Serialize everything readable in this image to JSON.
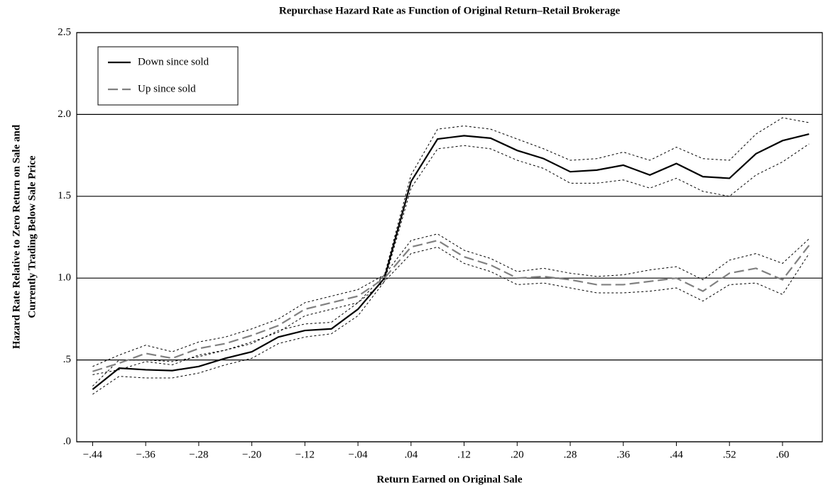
{
  "chart_data": {
    "type": "line",
    "title": "Repurchase Hazard Rate as Function of Original Return–Retail Brokerage",
    "x_label": "Return Earned on Original Sale",
    "y_label": [
      "Hazard Rate Relative to Zero Return on Sale and",
      "Currently Trading Below Sale Price"
    ],
    "x": [
      -0.44,
      -0.4,
      -0.36,
      -0.32,
      -0.28,
      -0.24,
      -0.2,
      -0.16,
      -0.12,
      -0.08,
      -0.04,
      0,
      0.04,
      0.08,
      0.12,
      0.16,
      0.2,
      0.24,
      0.28,
      0.32,
      0.36,
      0.4,
      0.44,
      0.48,
      0.52,
      0.56,
      0.6,
      0.64
    ],
    "series": [
      {
        "name": "Down since sold",
        "color": "#000000",
        "style": "solid",
        "values": [
          0.32,
          0.45,
          0.44,
          0.435,
          0.46,
          0.51,
          0.55,
          0.64,
          0.68,
          0.69,
          0.81,
          1.0,
          1.59,
          1.85,
          1.87,
          1.855,
          1.78,
          1.73,
          1.65,
          1.66,
          1.69,
          1.63,
          1.7,
          1.62,
          1.61,
          1.76,
          1.84,
          1.88
        ],
        "lower": [
          0.29,
          0.4,
          0.39,
          0.39,
          0.42,
          0.47,
          0.51,
          0.6,
          0.64,
          0.66,
          0.77,
          0.98,
          1.55,
          1.79,
          1.81,
          1.79,
          1.72,
          1.67,
          1.58,
          1.58,
          1.6,
          1.55,
          1.61,
          1.53,
          1.5,
          1.63,
          1.71,
          1.82
        ],
        "upper": [
          0.34,
          0.5,
          0.5,
          0.49,
          0.52,
          0.56,
          0.6,
          0.68,
          0.72,
          0.73,
          0.85,
          1.02,
          1.63,
          1.91,
          1.93,
          1.91,
          1.85,
          1.79,
          1.72,
          1.73,
          1.77,
          1.72,
          1.8,
          1.73,
          1.72,
          1.88,
          1.98,
          1.95
        ]
      },
      {
        "name": "Up since sold",
        "color": "#808080",
        "style": "dashed",
        "values": [
          0.43,
          0.48,
          0.54,
          0.51,
          0.57,
          0.6,
          0.65,
          0.71,
          0.81,
          0.85,
          0.89,
          1.0,
          1.19,
          1.23,
          1.13,
          1.08,
          1.0,
          1.01,
          0.99,
          0.96,
          0.96,
          0.98,
          1.0,
          0.92,
          1.03,
          1.06,
          0.99,
          1.2
        ],
        "lower": [
          0.41,
          0.44,
          0.49,
          0.47,
          0.53,
          0.56,
          0.61,
          0.67,
          0.77,
          0.81,
          0.85,
          0.98,
          1.15,
          1.19,
          1.09,
          1.04,
          0.96,
          0.97,
          0.94,
          0.91,
          0.91,
          0.92,
          0.94,
          0.86,
          0.96,
          0.97,
          0.9,
          1.15
        ],
        "upper": [
          0.46,
          0.53,
          0.59,
          0.55,
          0.61,
          0.64,
          0.69,
          0.75,
          0.85,
          0.89,
          0.93,
          1.02,
          1.23,
          1.27,
          1.17,
          1.12,
          1.04,
          1.06,
          1.03,
          1.01,
          1.02,
          1.05,
          1.07,
          0.99,
          1.11,
          1.15,
          1.09,
          1.24
        ]
      }
    ],
    "band_color": "#000000",
    "xlim": [
      -0.464,
      0.66
    ],
    "xticks": [
      {
        "value": -0.44,
        "label": "−.44"
      },
      {
        "value": -0.36,
        "label": "−.36"
      },
      {
        "value": -0.28,
        "label": "−.28"
      },
      {
        "value": -0.2,
        "label": "−.20"
      },
      {
        "value": -0.12,
        "label": "−.12"
      },
      {
        "value": -0.04,
        "label": "−.04"
      },
      {
        "value": 0.04,
        "label": ".04"
      },
      {
        "value": 0.12,
        "label": ".12"
      },
      {
        "value": 0.2,
        "label": ".20"
      },
      {
        "value": 0.28,
        "label": ".28"
      },
      {
        "value": 0.36,
        "label": ".36"
      },
      {
        "value": 0.44,
        "label": ".44"
      },
      {
        "value": 0.52,
        "label": ".52"
      },
      {
        "value": 0.6,
        "label": ".60"
      }
    ],
    "ylim": [
      0,
      2.5
    ],
    "yticks": [
      {
        "value": 0,
        "label": ".0"
      },
      {
        "value": 0.5,
        "label": ".5"
      },
      {
        "value": 1.0,
        "label": "1.0"
      },
      {
        "value": 1.5,
        "label": "1.5"
      },
      {
        "value": 2.0,
        "label": "2.0"
      },
      {
        "value": 2.5,
        "label": "2.5"
      }
    ],
    "grid": true,
    "legend": "upper left"
  }
}
